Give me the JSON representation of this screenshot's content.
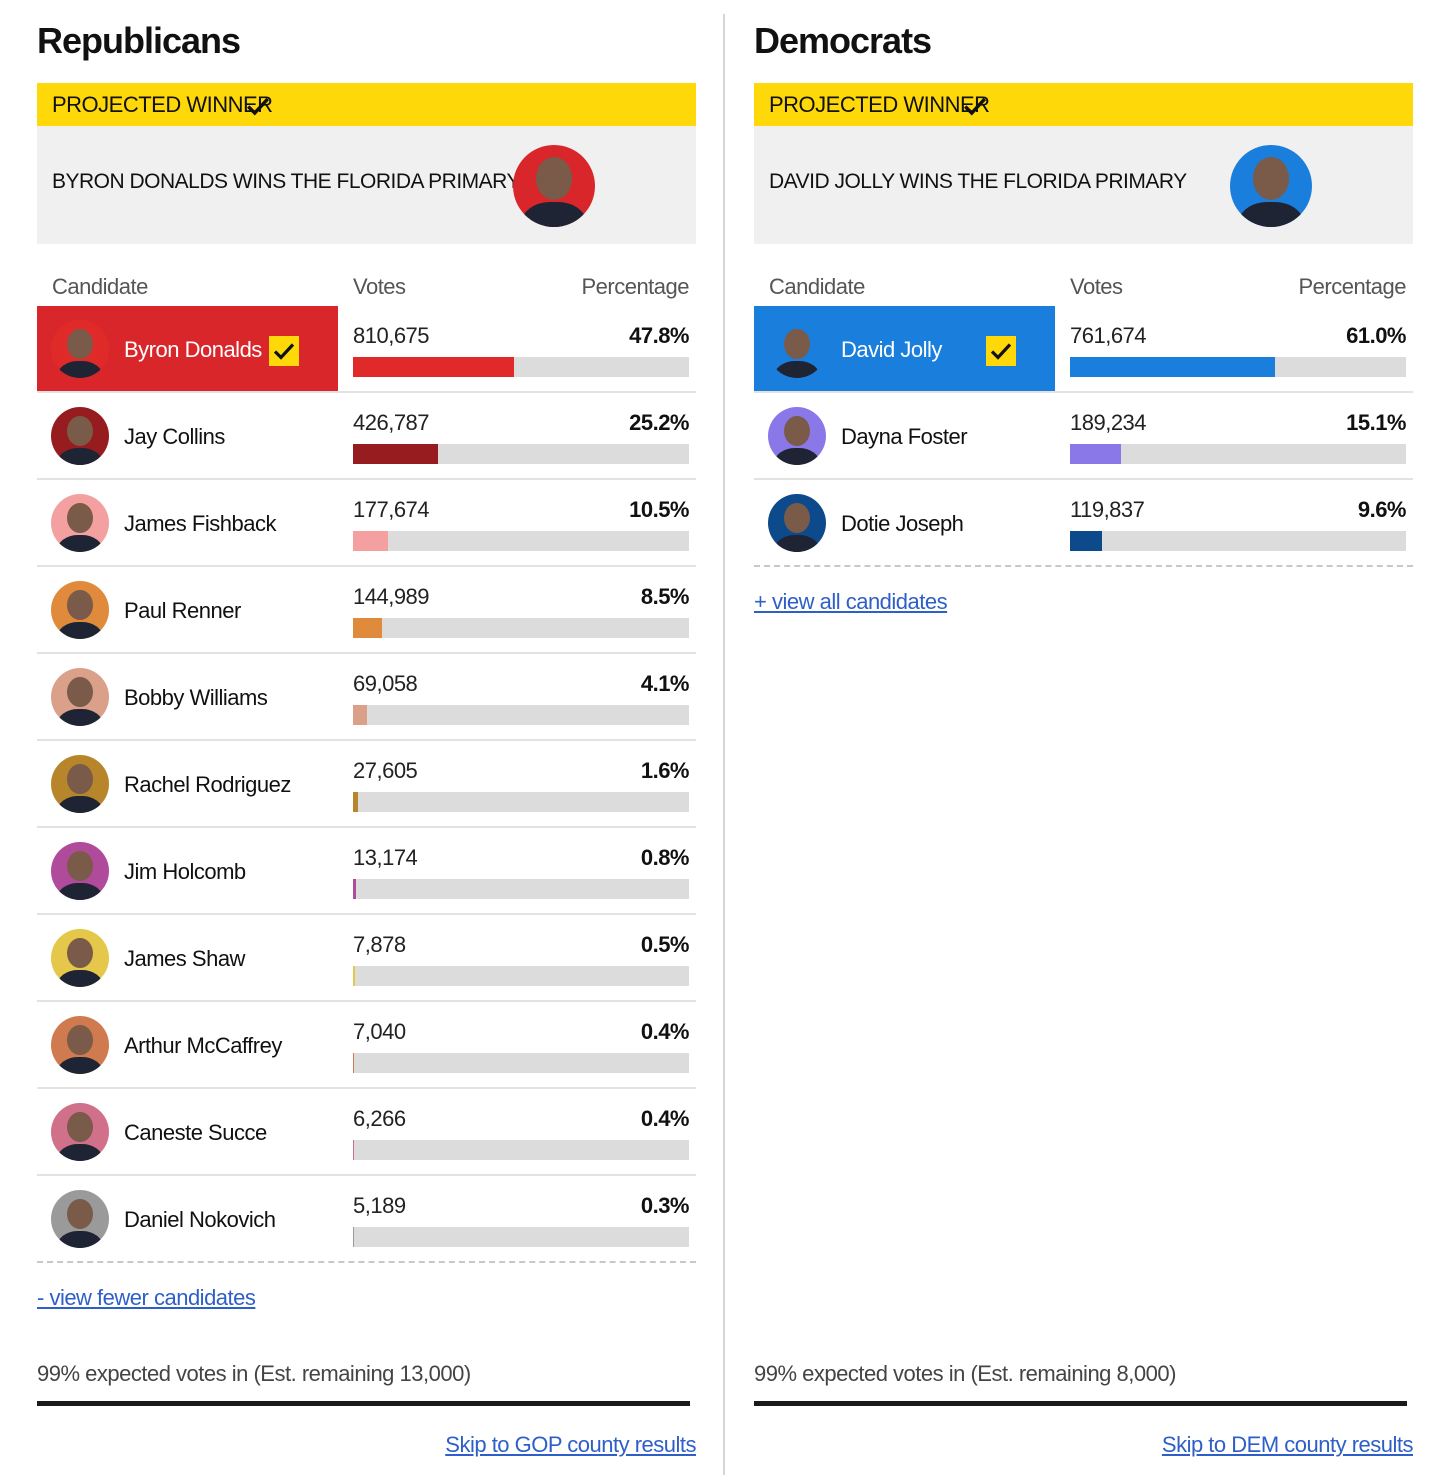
{
  "parties": [
    {
      "title": "Republicans",
      "banner": "PROJECTED WINNER",
      "headline": "BYRON DONALDS WINS THE FLORIDA PRIMARY",
      "columns": [
        "Candidate",
        "Votes",
        "Percentage"
      ],
      "winner_color": "#d9262a",
      "candidates": [
        {
          "name": "Byron Donalds",
          "votes": "810,675",
          "pct": {
            "value": 47.8,
            "label": "47.8%"
          },
          "color": "#e02a2a",
          "winner": true
        },
        {
          "name": "Jay Collins",
          "votes": "426,787",
          "pct": {
            "value": 25.2,
            "label": "25.2%"
          },
          "color": "#961c1f"
        },
        {
          "name": "James Fishback",
          "votes": "177,674",
          "pct": {
            "value": 10.5,
            "label": "10.5%"
          },
          "color": "#f4a0a0"
        },
        {
          "name": "Paul Renner",
          "votes": "144,989",
          "pct": {
            "value": 8.5,
            "label": "8.5%"
          },
          "color": "#e08b3b"
        },
        {
          "name": "Bobby Williams",
          "votes": "69,058",
          "pct": {
            "value": 4.1,
            "label": "4.1%"
          },
          "color": "#dba08a"
        },
        {
          "name": "Rachel Rodriguez",
          "votes": "27,605",
          "pct": {
            "value": 1.6,
            "label": "1.6%"
          },
          "color": "#b8862a"
        },
        {
          "name": "Jim Holcomb",
          "votes": "13,174",
          "pct": {
            "value": 0.8,
            "label": "0.8%"
          },
          "color": "#b04a9a"
        },
        {
          "name": "James Shaw",
          "votes": "7,878",
          "pct": {
            "value": 0.5,
            "label": "0.5%"
          },
          "color": "#e5c84a"
        },
        {
          "name": "Arthur McCaffrey",
          "votes": "7,040",
          "pct": {
            "value": 0.4,
            "label": "0.4%"
          },
          "color": "#d07a50"
        },
        {
          "name": "Caneste Succe",
          "votes": "6,266",
          "pct": {
            "value": 0.4,
            "label": "0.4%"
          },
          "color": "#d0708a"
        },
        {
          "name": "Daniel Nokovich",
          "votes": "5,189",
          "pct": {
            "value": 0.3,
            "label": "0.3%"
          },
          "color": "#9a9a9a"
        }
      ],
      "toggle": "- view fewer candidates",
      "expected": "99% expected votes in (Est. remaining 13,000)",
      "skip": "Skip to GOP county results"
    },
    {
      "title": "Democrats",
      "banner": "PROJECTED WINNER",
      "headline": "DAVID JOLLY WINS THE FLORIDA PRIMARY",
      "columns": [
        "Candidate",
        "Votes",
        "Percentage"
      ],
      "winner_color": "#1a7fdc",
      "candidates": [
        {
          "name": "David Jolly",
          "votes": "761,674",
          "pct": {
            "value": 61.0,
            "label": "61.0%"
          },
          "color": "#1a7fdc",
          "winner": true
        },
        {
          "name": "Dayna Foster",
          "votes": "189,234",
          "pct": {
            "value": 15.1,
            "label": "15.1%"
          },
          "color": "#8b78e8"
        },
        {
          "name": "Dotie Joseph",
          "votes": "119,837",
          "pct": {
            "value": 9.6,
            "label": "9.6%"
          },
          "color": "#0c4a8c"
        }
      ],
      "toggle": "+ view all candidates",
      "expected": "99% expected votes in (Est. remaining 8,000)",
      "skip": "Skip to DEM county results"
    }
  ]
}
